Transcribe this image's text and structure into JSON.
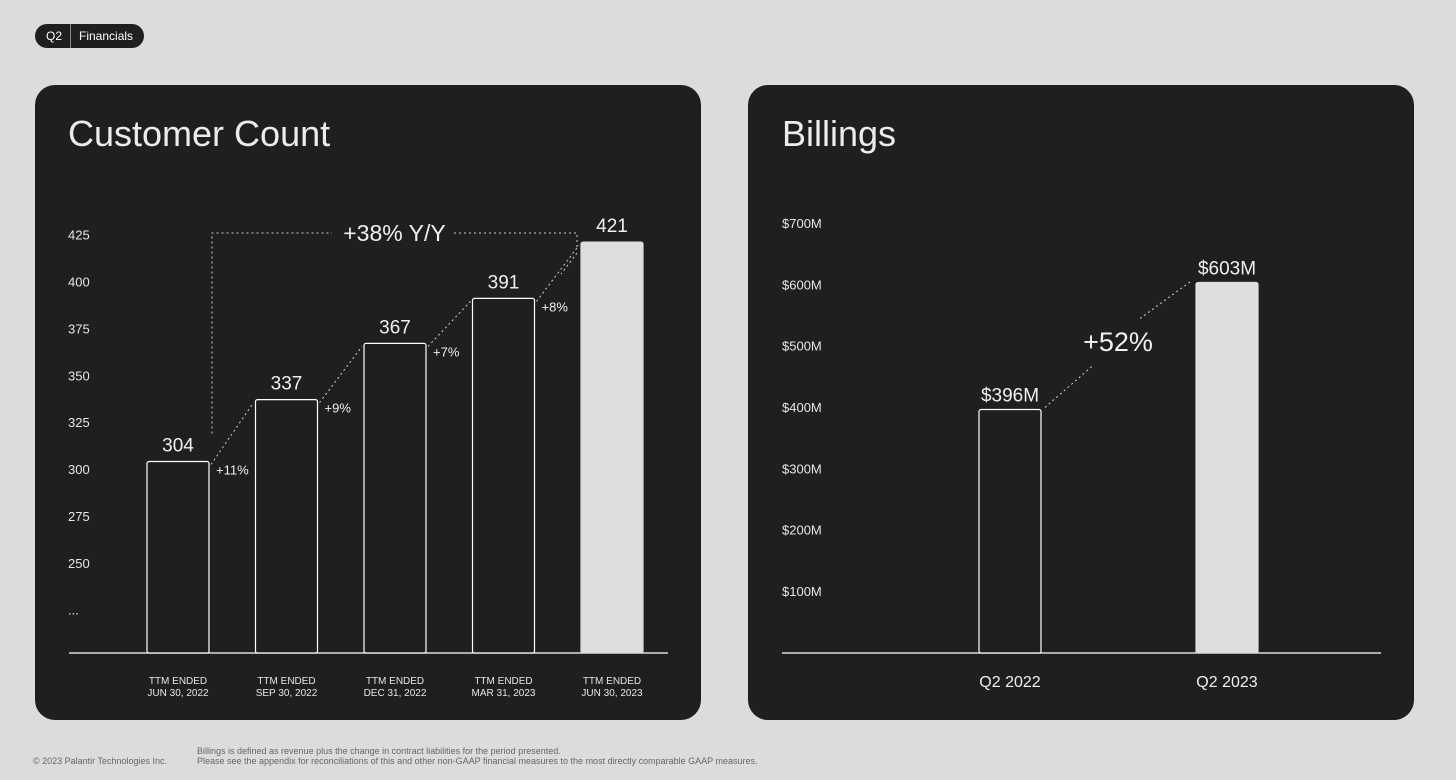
{
  "header": {
    "quarter": "Q2",
    "section": "Financials"
  },
  "chart_data": [
    {
      "type": "bar",
      "title": "Customer Count",
      "categories": [
        [
          "TTM ENDED",
          "JUN 30, 2022"
        ],
        [
          "TTM ENDED",
          "SEP 30, 2022"
        ],
        [
          "TTM ENDED",
          "DEC 31, 2022"
        ],
        [
          "TTM ENDED",
          "MAR 31, 2023"
        ],
        [
          "TTM ENDED",
          "JUN 30, 2023"
        ]
      ],
      "values": [
        304,
        337,
        367,
        391,
        421
      ],
      "value_labels": [
        "304",
        "337",
        "367",
        "391",
        "421"
      ],
      "growth_labels": [
        "+11%",
        "+9%",
        "+7%",
        "+8%"
      ],
      "annotation": "+38% Y/Y",
      "y_ticks": [
        "425",
        "400",
        "375",
        "350",
        "325",
        "300",
        "275",
        "250",
        "..."
      ],
      "y_tick_values": [
        425,
        400,
        375,
        350,
        325,
        300,
        275,
        250
      ],
      "axis_break_label": "...",
      "highlight_index": 4,
      "colors": {
        "highlight": "#dedede",
        "bar_outline": "#ffffff",
        "background": "#1d1f21"
      }
    },
    {
      "type": "bar",
      "title": "Billings",
      "categories": [
        "Q2 2022",
        "Q2 2023"
      ],
      "values": [
        396,
        603
      ],
      "value_labels": [
        "$396M",
        "$603M"
      ],
      "annotation": "+52%",
      "y_ticks": [
        "$700M",
        "$600M",
        "$500M",
        "$400M",
        "$300M",
        "$200M",
        "$100M"
      ],
      "y_tick_values": [
        700,
        600,
        500,
        400,
        300,
        200,
        100
      ],
      "ylim": [
        0,
        700
      ],
      "highlight_index": 1,
      "colors": {
        "highlight": "#dedede",
        "bar_outline": "#ffffff",
        "background": "#1d1f21"
      }
    }
  ],
  "footer": {
    "copyright": "© 2023 Palantir Technologies Inc.",
    "note_line1": "Billings is defined as revenue plus the change in contract liabilities for the period presented.",
    "note_line2": "Please see the appendix for reconciliations of this and other non-GAAP financial measures to the most directly comparable GAAP measures."
  }
}
